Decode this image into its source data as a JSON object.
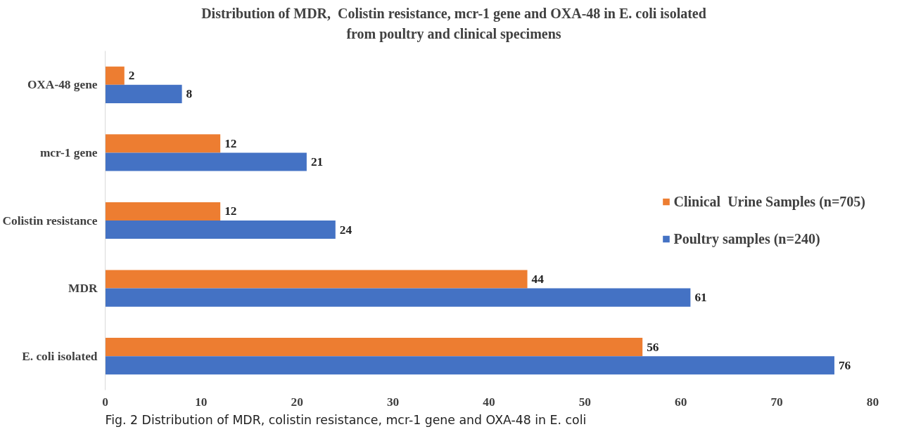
{
  "chart_data": {
    "type": "bar",
    "orientation": "horizontal",
    "title": "Distribution of MDR,  Colistin resistance, mcr-1 gene and OXA-48 in E. coli isolated\nfrom poultry and clinical specimens",
    "categories": [
      "OXA-48 gene",
      "mcr-1 gene",
      "Colistin resistance",
      "MDR",
      "E. coli isolated"
    ],
    "series": [
      {
        "name": "Clinical  Urine Samples (n=705)",
        "color": "#ed7d31",
        "values": [
          2,
          12,
          12,
          44,
          56
        ]
      },
      {
        "name": "Poultry samples (n=240)",
        "color": "#4472c4",
        "values": [
          8,
          21,
          24,
          61,
          76
        ]
      }
    ],
    "xlim": [
      0,
      80
    ],
    "xticks": [
      0,
      10,
      20,
      30,
      40,
      50,
      60,
      70,
      80
    ],
    "grid": false,
    "legend": "right",
    "data_labels": true,
    "annotations": [
      "Fig. 2  Distribution of MDR, colistin resistance, mcr-1 gene and OXA-48 in E. coli"
    ]
  }
}
